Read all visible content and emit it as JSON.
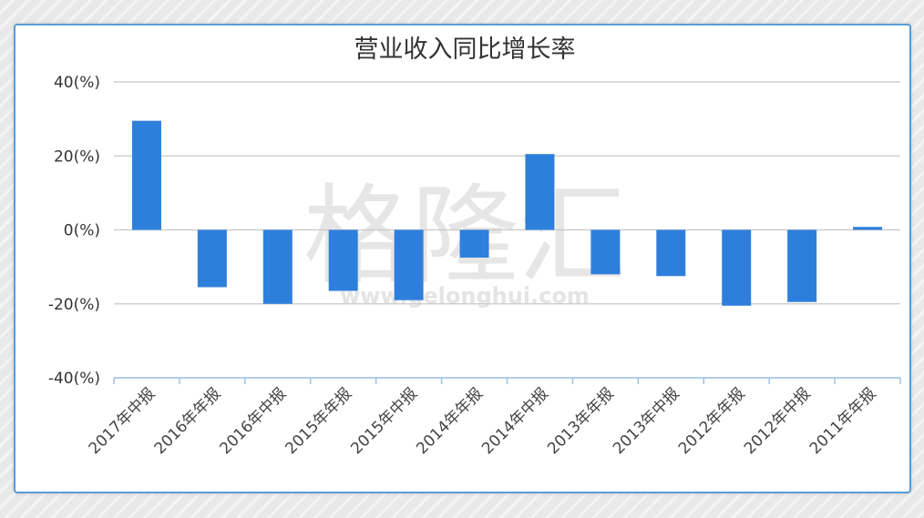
{
  "watermark": {
    "text": "格隆汇",
    "url": "www.gelonghui.com"
  },
  "chart_data": {
    "type": "bar",
    "title": "营业收入同比增长率",
    "xlabel": "",
    "ylabel": "",
    "ylim": [
      -40,
      40
    ],
    "yticks": [
      40,
      20,
      0,
      -20,
      -40
    ],
    "ytick_labels": [
      "40(%)",
      "20(%)",
      "0(%)",
      "-20(%)",
      "-40(%)"
    ],
    "categories": [
      "2017年中报",
      "2016年年报",
      "2016年中报",
      "2015年年报",
      "2015年中报",
      "2014年年报",
      "2014年中报",
      "2013年年报",
      "2013年中报",
      "2012年年报",
      "2012年中报",
      "2011年年报"
    ],
    "values": [
      29.5,
      -15.5,
      -20,
      -16.5,
      -19,
      -7.5,
      20.5,
      -12,
      -12.5,
      -20.5,
      -19.5,
      0.8
    ],
    "bar_color": "#2e7fdb",
    "grid": true,
    "legend": "none"
  }
}
